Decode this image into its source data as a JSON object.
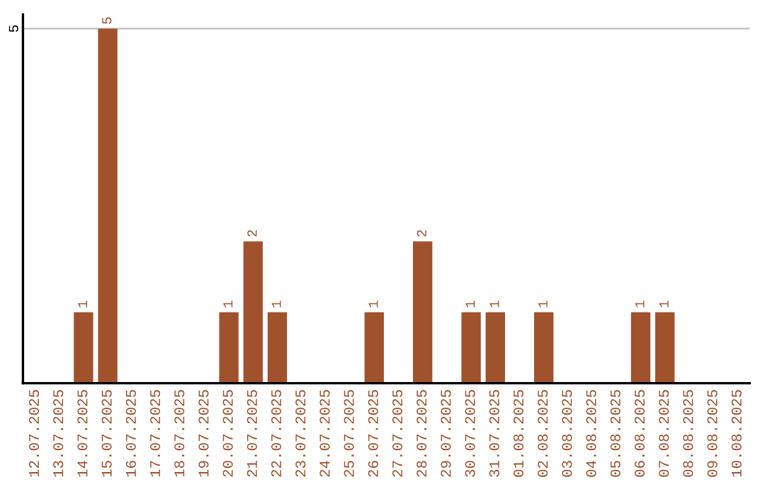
{
  "chart_data": {
    "type": "bar",
    "categories": [
      "12.07.2025",
      "13.07.2025",
      "14.07.2025",
      "15.07.2025",
      "16.07.2025",
      "17.07.2025",
      "18.07.2025",
      "19.07.2025",
      "20.07.2025",
      "21.07.2025",
      "22.07.2025",
      "23.07.2025",
      "24.07.2025",
      "25.07.2025",
      "26.07.2025",
      "27.07.2025",
      "28.07.2025",
      "29.07.2025",
      "30.07.2025",
      "31.07.2025",
      "01.08.2025",
      "02.08.2025",
      "03.08.2025",
      "04.08.2025",
      "05.08.2025",
      "06.08.2025",
      "07.08.2025",
      "08.08.2025",
      "09.08.2025",
      "10.08.2025"
    ],
    "values": [
      0,
      0,
      1,
      5,
      0,
      0,
      0,
      0,
      1,
      2,
      1,
      0,
      0,
      0,
      1,
      0,
      2,
      0,
      1,
      1,
      0,
      1,
      0,
      0,
      0,
      1,
      1,
      0,
      0,
      0
    ],
    "value_labels": [
      null,
      null,
      "1",
      "5",
      null,
      null,
      null,
      null,
      "1",
      "2",
      "1",
      null,
      null,
      null,
      "1",
      null,
      "2",
      null,
      "1",
      "1",
      null,
      "1",
      null,
      null,
      null,
      "1",
      "1",
      null,
      null,
      null
    ],
    "color": "#a0522d",
    "ylim": [
      0,
      5.2
    ],
    "yticks": [
      5
    ],
    "grid": "y"
  }
}
